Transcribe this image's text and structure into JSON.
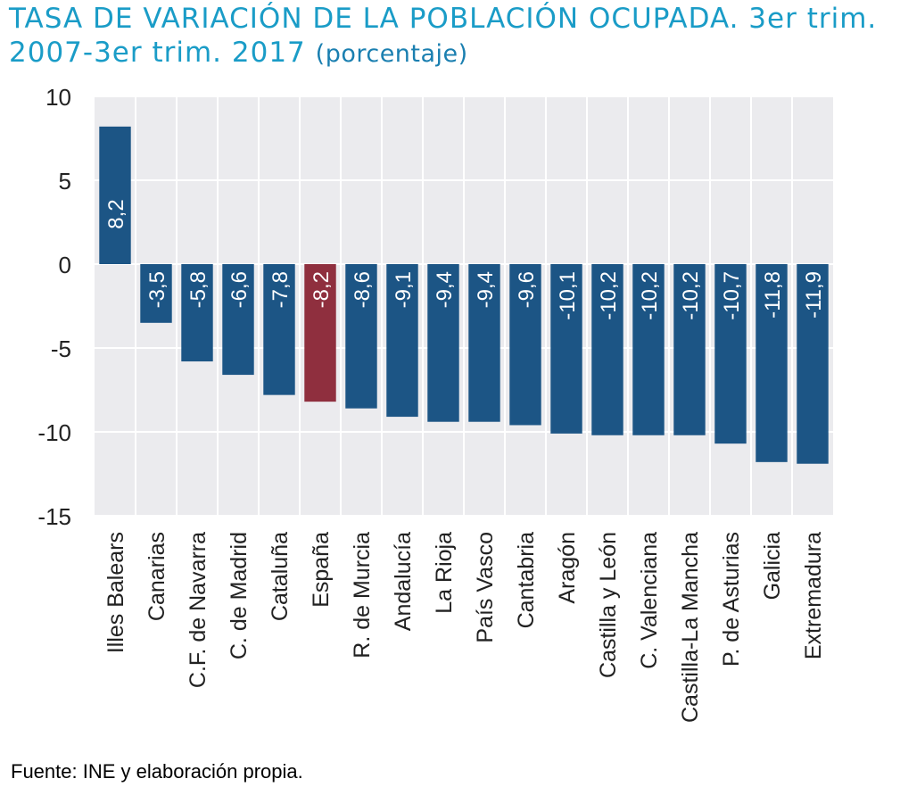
{
  "title": "TASA DE VARIACIÓN DE LA POBLACIÓN OCUPADA. 3er trim. 2007-3er trim. 2017",
  "title_unit": "(porcentaje)",
  "source": "Fuente: INE y elaboración propia.",
  "colors": {
    "bar": "#1c5585",
    "highlight": "#8f2f3e",
    "plot_bg": "#ebebee",
    "grid": "#ffffff",
    "title": "#1a9cc7"
  },
  "chart_data": {
    "type": "bar",
    "title": "TASA DE VARIACIÓN DE LA POBLACIÓN OCUPADA. 3er trim. 2007-3er trim. 2017 (porcentaje)",
    "categories": [
      "Illes Balears",
      "Canarias",
      "C.F. de Navarra",
      "C. de Madrid",
      "Cataluña",
      "España",
      "R. de Murcia",
      "Andalucía",
      "La Rioja",
      "País Vasco",
      "Cantabria",
      "Aragón",
      "Castilla y León",
      "C. Valenciana",
      "Castilla-La Mancha",
      "P. de Asturias",
      "Galicia",
      "Extremadura"
    ],
    "values": [
      8.2,
      -3.5,
      -5.8,
      -6.6,
      -7.8,
      -8.2,
      -8.6,
      -9.1,
      -9.4,
      -9.4,
      -9.6,
      -10.1,
      -10.2,
      -10.2,
      -10.2,
      -10.7,
      -11.8,
      -11.9
    ],
    "data_labels": [
      "8,2",
      "-3,5",
      "-5,8",
      "-6,6",
      "-7,8",
      "-8,2",
      "-8,6",
      "-9,1",
      "-9,4",
      "-9,4",
      "-9,6",
      "-10,1",
      "-10,2",
      "-10,2",
      "-10,2",
      "-10,7",
      "-11,8",
      "-11,9"
    ],
    "highlight_category": "España",
    "yticks": [
      10,
      5,
      0,
      -5,
      -10,
      -15
    ],
    "ylim": [
      -15,
      10
    ],
    "xlabel": "",
    "ylabel": "",
    "grid": true,
    "legend": false
  }
}
